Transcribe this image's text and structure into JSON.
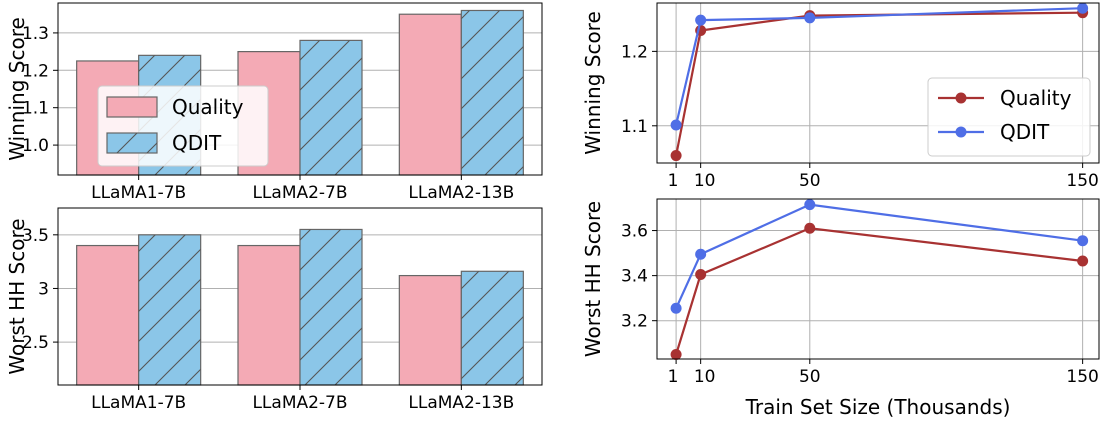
{
  "chart_data": [
    {
      "type": "bar",
      "categories": [
        "LLaMA1-7B",
        "LLaMA2-7B",
        "LLaMA2-13B"
      ],
      "series": [
        {
          "name": "Quality",
          "values": [
            1.225,
            1.25,
            1.35
          ]
        },
        {
          "name": "QDIT",
          "values": [
            1.24,
            1.28,
            1.36
          ]
        }
      ],
      "ylabel": "Winning Score",
      "ylim": [
        0.92,
        1.38
      ],
      "yticks": [
        "1.0",
        "1.1",
        "1.2",
        "1.3"
      ],
      "grid": "horizontal",
      "legend_position": "center-left"
    },
    {
      "type": "bar",
      "categories": [
        "LLaMA1-7B",
        "LLaMA2-7B",
        "LLaMA2-13B"
      ],
      "series": [
        {
          "name": "Quality",
          "values": [
            3.4,
            3.4,
            3.12
          ]
        },
        {
          "name": "QDIT",
          "values": [
            3.5,
            3.55,
            3.16
          ]
        }
      ],
      "ylabel": "Worst HH Score",
      "ylim": [
        2.1,
        3.75
      ],
      "yticks": [
        "2.5",
        "3",
        "3.5"
      ],
      "grid": "horizontal"
    },
    {
      "type": "line",
      "x": [
        1,
        10,
        50,
        150
      ],
      "series": [
        {
          "name": "Quality",
          "values": [
            1.06,
            1.228,
            1.248,
            1.252
          ]
        },
        {
          "name": "QDIT",
          "values": [
            1.101,
            1.242,
            1.245,
            1.258
          ]
        }
      ],
      "ylabel": "Winning Score",
      "xlim": [
        -6,
        156
      ],
      "ylim": [
        1.05,
        1.265
      ],
      "yticks": [
        "1.1",
        "1.2"
      ],
      "xticks": [
        "1",
        "10",
        "50",
        "150"
      ],
      "grid": "both",
      "legend_position": "center-right"
    },
    {
      "type": "line",
      "x": [
        1,
        10,
        50,
        150
      ],
      "series": [
        {
          "name": "Quality",
          "values": [
            3.05,
            3.405,
            3.61,
            3.465
          ]
        },
        {
          "name": "QDIT",
          "values": [
            3.255,
            3.495,
            3.715,
            3.555
          ]
        }
      ],
      "ylabel": "Worst HH Score",
      "xlabel": "Train Set Size (Thousands)",
      "xlim": [
        -6,
        156
      ],
      "ylim": [
        3.03,
        3.74
      ],
      "yticks": [
        "3.2",
        "3.4",
        "3.6"
      ],
      "xticks": [
        "1",
        "10",
        "50",
        "150"
      ],
      "grid": "both"
    }
  ],
  "colors": {
    "quality_bar": "#f4aab5",
    "qdit_bar": "#8bc6e8",
    "quality_line": "#a83232",
    "qdit_line": "#4f6ee6"
  }
}
